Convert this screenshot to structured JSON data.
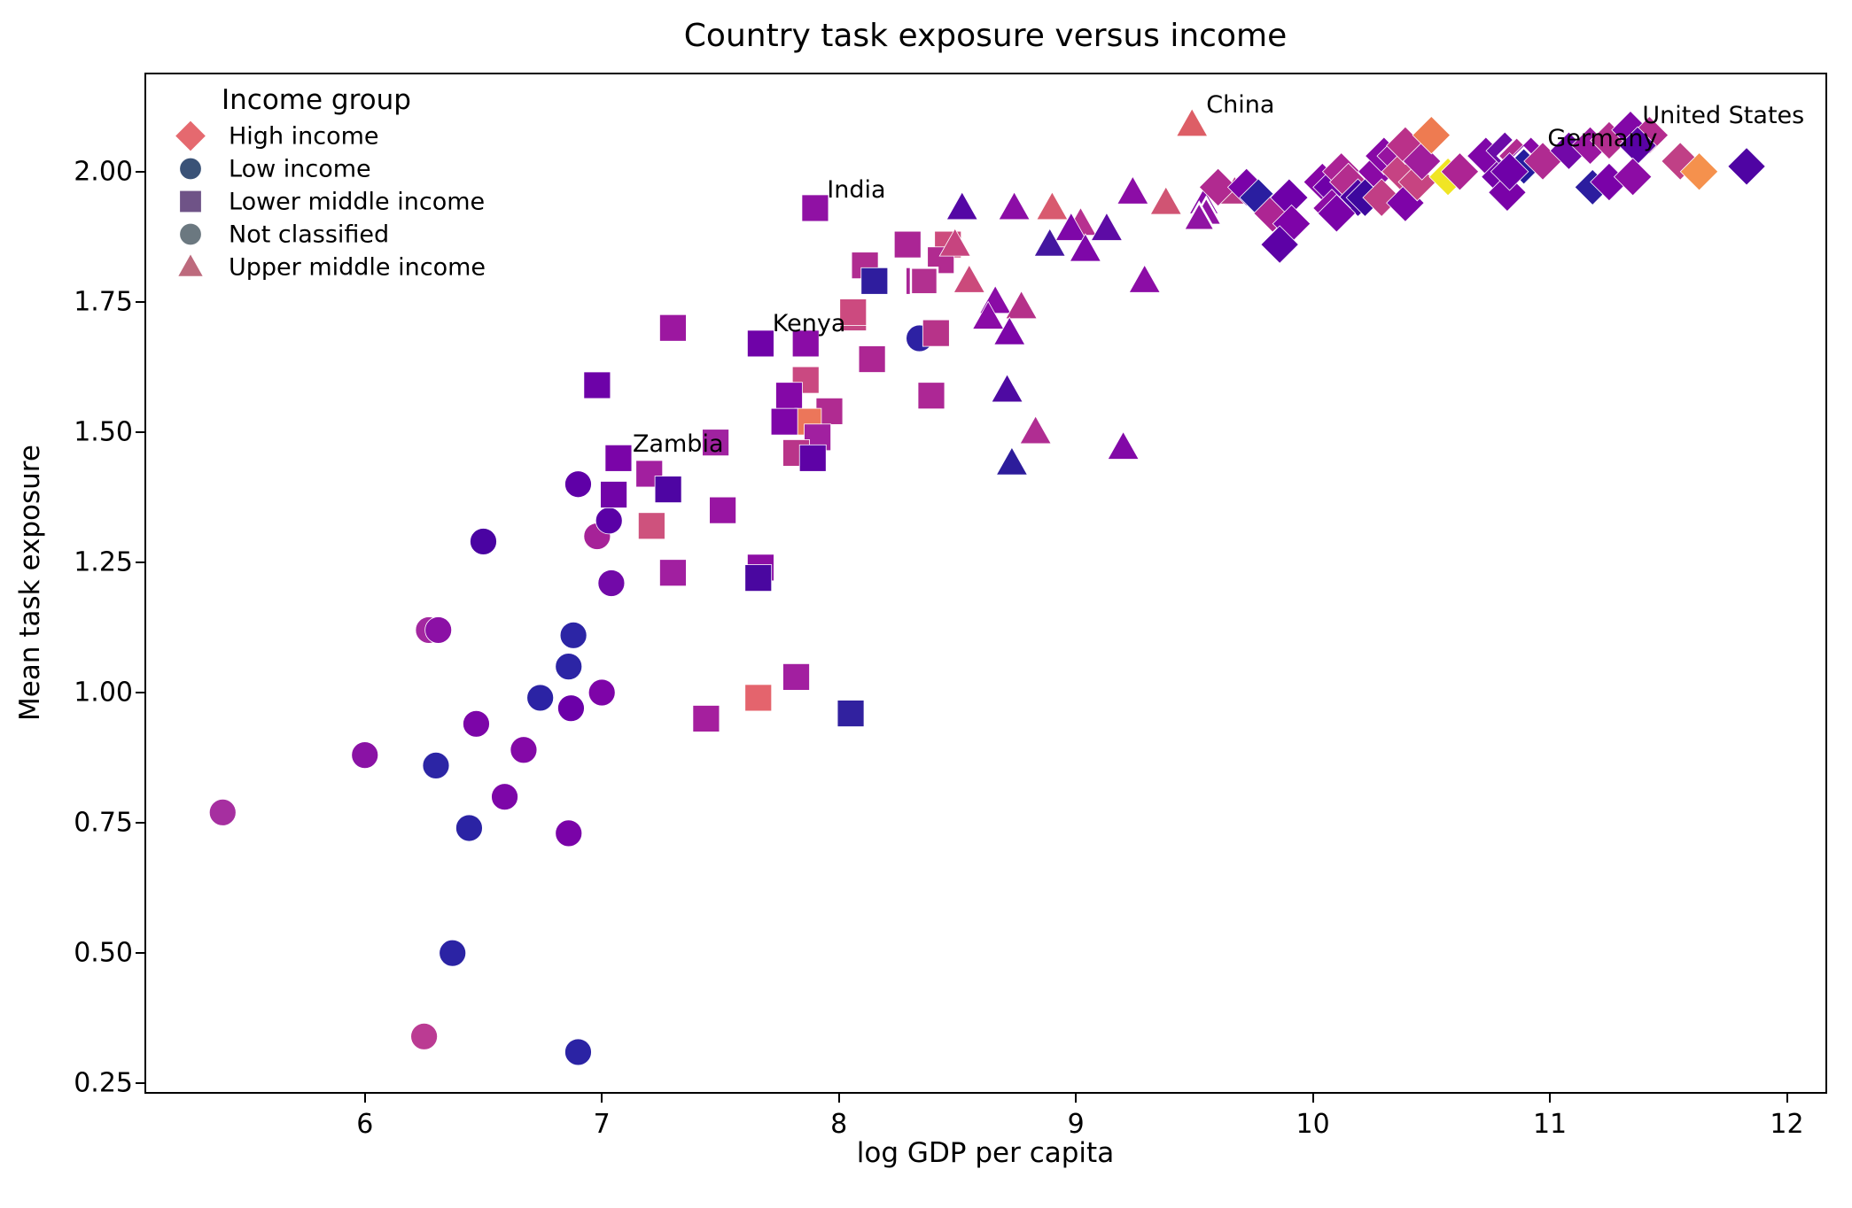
{
  "chart_data": {
    "type": "scatter",
    "title": "Country task exposure versus income",
    "xlabel": "log GDP per capita",
    "ylabel": "Mean task exposure",
    "xlim": [
      5.07,
      12.17
    ],
    "ylim": [
      0.23,
      2.19
    ],
    "xticks": [
      6,
      7,
      8,
      9,
      10,
      11,
      12
    ],
    "yticks": [
      2.0,
      1.75,
      1.5,
      1.25,
      1.0,
      0.75,
      0.5,
      0.25
    ],
    "grid": false,
    "legend": {
      "title": "Income group",
      "position": "upper left",
      "entries": [
        {
          "label": "High income",
          "shape": "diamond",
          "color": "#e5696f"
        },
        {
          "label": "Low income",
          "shape": "circle",
          "color": "#3a5277"
        },
        {
          "label": "Lower middle income",
          "shape": "square",
          "color": "#6f5387"
        },
        {
          "label": "Not classified",
          "shape": "circle",
          "color": "#6b7880"
        },
        {
          "label": "Upper middle income",
          "shape": "triangle",
          "color": "#bd6a7d"
        }
      ]
    },
    "groups": {
      "high": {
        "label": "High income",
        "shape": "diamond"
      },
      "low": {
        "label": "Low income",
        "shape": "circle"
      },
      "lower": {
        "label": "Lower middle income",
        "shape": "square"
      },
      "notcl": {
        "label": "Not classified",
        "shape": "circle"
      },
      "upper": {
        "label": "Upper middle income",
        "shape": "triangle"
      }
    },
    "annotations": [
      {
        "text": "China",
        "x": 9.55,
        "y": 2.125
      },
      {
        "text": "United States",
        "x": 11.39,
        "y": 2.105
      },
      {
        "text": "Germany",
        "x": 10.99,
        "y": 2.06
      },
      {
        "text": "India",
        "x": 7.95,
        "y": 1.963
      },
      {
        "text": "Kenya",
        "x": 7.72,
        "y": 1.705
      },
      {
        "text": "Zambia",
        "x": 7.13,
        "y": 1.475
      }
    ],
    "points": [
      [
        5.4,
        0.77,
        "low",
        "#a62fa0"
      ],
      [
        6.0,
        0.88,
        "low",
        "#8a12a5"
      ],
      [
        6.25,
        0.34,
        "low",
        "#bb3b93"
      ],
      [
        6.27,
        1.12,
        "low",
        "#a327a0"
      ],
      [
        6.31,
        1.12,
        "low",
        "#8b10a5"
      ],
      [
        6.3,
        0.86,
        "low",
        "#2c25a5"
      ],
      [
        6.37,
        0.5,
        "low",
        "#2b23a4"
      ],
      [
        6.44,
        0.74,
        "low",
        "#2b23a4"
      ],
      [
        6.47,
        0.94,
        "low",
        "#7c05a8"
      ],
      [
        6.5,
        1.29,
        "low",
        "#4a03a2"
      ],
      [
        6.59,
        0.8,
        "low",
        "#7d06a8"
      ],
      [
        6.67,
        0.89,
        "low",
        "#8409a7"
      ],
      [
        6.74,
        0.99,
        "low",
        "#2b23a4"
      ],
      [
        6.87,
        0.97,
        "low",
        "#6b00a8"
      ],
      [
        7.0,
        1.0,
        "low",
        "#7e04a8"
      ],
      [
        6.86,
        0.73,
        "low",
        "#7a03a8"
      ],
      [
        6.88,
        1.11,
        "low",
        "#2c25a5"
      ],
      [
        6.86,
        1.05,
        "low",
        "#2c25a5"
      ],
      [
        6.9,
        1.4,
        "low",
        "#5f00a7"
      ],
      [
        6.9,
        0.31,
        "low",
        "#2b23a4"
      ],
      [
        6.98,
        1.3,
        "low",
        "#a62298"
      ],
      [
        7.03,
        1.33,
        "low",
        "#5a01a6"
      ],
      [
        7.04,
        1.21,
        "low",
        "#7209a8"
      ],
      [
        8.34,
        1.68,
        "low",
        "#2d21a3"
      ],
      [
        6.98,
        1.59,
        "lower",
        "#6d02a8"
      ],
      [
        7.3,
        1.7,
        "lower",
        "#9c17a0"
      ],
      [
        7.67,
        1.67,
        "lower",
        "#6f02a8"
      ],
      [
        7.86,
        1.67,
        "lower",
        "#8a0ca6"
      ],
      [
        8.06,
        1.72,
        "lower",
        "#c64683"
      ],
      [
        8.14,
        1.64,
        "lower",
        "#ad2693"
      ],
      [
        7.86,
        1.6,
        "lower",
        "#ca4981"
      ],
      [
        7.79,
        1.57,
        "lower",
        "#8408a7"
      ],
      [
        7.96,
        1.54,
        "lower",
        "#b02b91"
      ],
      [
        7.87,
        1.52,
        "lower",
        "#ec765a"
      ],
      [
        7.77,
        1.52,
        "lower",
        "#7e05a8"
      ],
      [
        7.91,
        1.49,
        "lower",
        "#a120a0"
      ],
      [
        7.82,
        1.46,
        "lower",
        "#b93589"
      ],
      [
        7.89,
        1.45,
        "lower",
        "#5e02a6"
      ],
      [
        7.48,
        1.48,
        "lower",
        "#a022a0"
      ],
      [
        7.07,
        1.45,
        "lower",
        "#7a04a8"
      ],
      [
        7.2,
        1.42,
        "lower",
        "#a21f9f"
      ],
      [
        7.28,
        1.39,
        "lower",
        "#4e05a3"
      ],
      [
        7.05,
        1.38,
        "lower",
        "#7104a8"
      ],
      [
        7.51,
        1.35,
        "lower",
        "#9815a2"
      ],
      [
        7.21,
        1.32,
        "lower",
        "#ce527d"
      ],
      [
        7.3,
        1.23,
        "lower",
        "#a11fa0"
      ],
      [
        7.67,
        1.24,
        "lower",
        "#8d0ea5"
      ],
      [
        7.66,
        1.22,
        "lower",
        "#4a07a0"
      ],
      [
        7.82,
        1.03,
        "lower",
        "#a21fa0"
      ],
      [
        7.66,
        0.99,
        "lower",
        "#e4646d"
      ],
      [
        7.44,
        0.95,
        "lower",
        "#a51f9e"
      ],
      [
        8.05,
        0.96,
        "lower",
        "#31219f"
      ],
      [
        7.9,
        1.93,
        "lower",
        "#9011a4"
      ],
      [
        8.29,
        1.86,
        "lower",
        "#ab2595"
      ],
      [
        8.46,
        1.86,
        "lower",
        "#cd4b7d"
      ],
      [
        8.43,
        1.83,
        "lower",
        "#b12b90"
      ],
      [
        8.11,
        1.82,
        "lower",
        "#b02c91"
      ],
      [
        8.15,
        1.79,
        "lower",
        "#2f1d9e"
      ],
      [
        8.34,
        1.79,
        "lower",
        "#a92597"
      ],
      [
        8.36,
        1.79,
        "lower",
        "#b23090",
        1
      ],
      [
        8.06,
        1.73,
        "lower",
        "#cc4a7f"
      ],
      [
        8.41,
        1.69,
        "lower",
        "#b73389"
      ],
      [
        8.39,
        1.57,
        "lower",
        "#ad2795"
      ],
      [
        8.52,
        1.93,
        "upper",
        "#5407a5"
      ],
      [
        8.74,
        1.93,
        "upper",
        "#8c0da6"
      ],
      [
        8.9,
        1.93,
        "upper",
        "#d85a6f"
      ],
      [
        9.24,
        1.96,
        "upper",
        "#8c0da6"
      ],
      [
        9.38,
        1.94,
        "upper",
        "#d05473"
      ],
      [
        9.02,
        1.9,
        "upper",
        "#b73190"
      ],
      [
        8.98,
        1.89,
        "upper",
        "#7e07a8"
      ],
      [
        9.13,
        1.89,
        "upper",
        "#5d0ba5"
      ],
      [
        8.89,
        1.86,
        "upper",
        "#4417a0"
      ],
      [
        9.04,
        1.85,
        "upper",
        "#7e07a8"
      ],
      [
        9.29,
        1.79,
        "upper",
        "#8c0da6"
      ],
      [
        8.49,
        1.86,
        "upper",
        "#c7447f"
      ],
      [
        8.55,
        1.79,
        "upper",
        "#cb4a7b"
      ],
      [
        8.66,
        1.75,
        "upper",
        "#8a0ba6"
      ],
      [
        8.63,
        1.72,
        "upper",
        "#8a0ba6"
      ],
      [
        8.77,
        1.74,
        "upper",
        "#b53189"
      ],
      [
        8.72,
        1.69,
        "upper",
        "#7c05a8"
      ],
      [
        8.71,
        1.58,
        "upper",
        "#4e0aa2"
      ],
      [
        8.83,
        1.5,
        "upper",
        "#b02d92"
      ],
      [
        8.73,
        1.44,
        "upper",
        "#2d1c9b"
      ],
      [
        9.2,
        1.47,
        "upper",
        "#8209a7"
      ],
      [
        9.49,
        2.09,
        "upper",
        "#dd5e66"
      ],
      [
        9.54,
        1.94,
        "upper",
        "#8609a7",
        1
      ],
      [
        9.55,
        1.92,
        "upper",
        "#9013a3",
        1
      ],
      [
        9.52,
        1.91,
        "upper",
        "#9013a3",
        1
      ],
      [
        9.67,
        1.96,
        "upper",
        "#b83986"
      ],
      [
        9.6,
        1.97,
        "high",
        "#b12a90"
      ],
      [
        9.72,
        1.97,
        "high",
        "#7a02a8"
      ],
      [
        9.77,
        1.95,
        "high",
        "#2a1ea0"
      ],
      [
        9.83,
        1.92,
        "high",
        "#ad2593"
      ],
      [
        9.9,
        1.95,
        "high",
        "#6e00a8"
      ],
      [
        9.91,
        1.9,
        "high",
        "#7e03a8"
      ],
      [
        9.86,
        1.86,
        "high",
        "#5d01a6"
      ],
      [
        10.04,
        1.98,
        "high",
        "#8606a6"
      ],
      [
        10.08,
        1.97,
        "high",
        "#6f00a8"
      ],
      [
        10.12,
        2.0,
        "high",
        "#ab2295"
      ],
      [
        10.15,
        1.98,
        "high",
        "#b42d8e"
      ],
      [
        10.19,
        1.95,
        "high",
        "#4903a0"
      ],
      [
        10.08,
        1.93,
        "high",
        "#8d0ca5"
      ],
      [
        10.1,
        1.92,
        "high",
        "#7a02a8"
      ],
      [
        10.22,
        1.95,
        "high",
        "#3d089e"
      ],
      [
        10.27,
        2.0,
        "high",
        "#8a09a5"
      ],
      [
        10.29,
        1.95,
        "high",
        "#c13e85"
      ],
      [
        10.3,
        2.03,
        "high",
        "#8708a6"
      ],
      [
        10.35,
        2.03,
        "high",
        "#9613a0"
      ],
      [
        10.37,
        2.0,
        "high",
        "#c64383"
      ],
      [
        10.39,
        2.05,
        "high",
        "#ba3189"
      ],
      [
        10.39,
        1.94,
        "high",
        "#7e03a8"
      ],
      [
        10.44,
        1.98,
        "high",
        "#c74481"
      ],
      [
        10.46,
        2.02,
        "high",
        "#a01d9c"
      ],
      [
        10.5,
        2.07,
        "high",
        "#ee7b51"
      ],
      [
        10.57,
        1.99,
        "high",
        "#f0e524"
      ],
      [
        10.62,
        2.0,
        "high",
        "#ad2493"
      ],
      [
        10.73,
        2.03,
        "high",
        "#7f05a8"
      ],
      [
        10.79,
        1.99,
        "high",
        "#7402a8"
      ],
      [
        10.81,
        2.04,
        "high",
        "#6b0ba7"
      ],
      [
        10.82,
        1.96,
        "high",
        "#7a02a8"
      ],
      [
        10.86,
        2.03,
        "high",
        "#b22c90",
        1
      ],
      [
        10.92,
        2.03,
        "high",
        "#8708a6"
      ],
      [
        10.89,
        2.01,
        "high",
        "#241c9e",
        1
      ],
      [
        10.97,
        2.02,
        "high",
        "#b02b91"
      ],
      [
        10.83,
        2.0,
        "high",
        "#6f00a8"
      ],
      [
        11.08,
        2.04,
        "high",
        "#7208a8"
      ],
      [
        11.17,
        2.05,
        "high",
        "#9a16a0"
      ],
      [
        11.25,
        2.06,
        "high",
        "#b32e8f"
      ],
      [
        11.34,
        2.08,
        "high",
        "#8207a7"
      ],
      [
        11.42,
        2.07,
        "high",
        "#b42b8f"
      ],
      [
        11.37,
        2.05,
        "high",
        "#5a02a5"
      ],
      [
        11.55,
        2.02,
        "high",
        "#c04086"
      ],
      [
        11.63,
        2.0,
        "high",
        "#f5914d"
      ],
      [
        11.83,
        2.01,
        "high",
        "#4f04a3"
      ],
      [
        11.18,
        1.97,
        "high",
        "#2c1d9f",
        1
      ],
      [
        11.25,
        1.98,
        "high",
        "#7a02a8"
      ],
      [
        11.35,
        1.99,
        "high",
        "#8d0ca5"
      ]
    ]
  }
}
